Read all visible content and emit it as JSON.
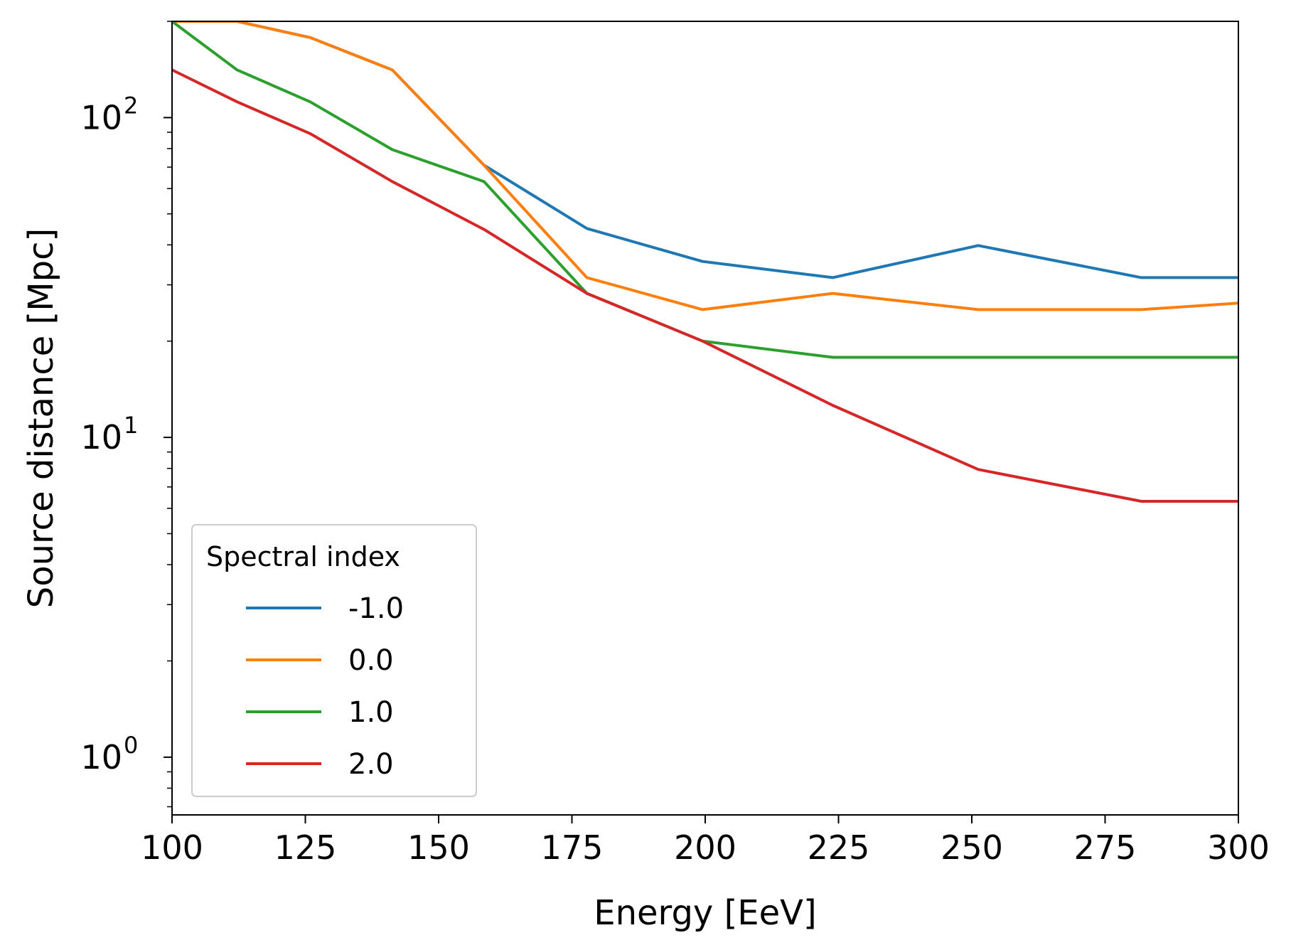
{
  "chart_data": {
    "type": "line",
    "xlabel": "Energy [EeV]",
    "ylabel": "Source distance [Mpc]",
    "xlim": [
      100,
      300
    ],
    "ylim": [
      0.66,
      200
    ],
    "yscale": "log",
    "x_ticks": [
      "100",
      "125",
      "150",
      "175",
      "200",
      "225",
      "250",
      "275",
      "300"
    ],
    "y_ticks": [
      {
        "base": "10",
        "exp": "0"
      },
      {
        "base": "10",
        "exp": "1"
      },
      {
        "base": "10",
        "exp": "2"
      }
    ],
    "legend": {
      "title": "Spectral index",
      "placement": "lower-left"
    },
    "grid": false,
    "x": [
      100,
      112.2,
      125.9,
      141.3,
      158.5,
      177.8,
      199.5,
      223.9,
      251.2,
      281.8,
      300
    ],
    "series": [
      {
        "name": "-1.0",
        "color": "#1f77b4",
        "values": [
          200,
          200,
          178,
          141,
          71,
          45,
          35.5,
          31.6,
          39.8,
          31.6,
          31.6
        ]
      },
      {
        "name": "0.0",
        "color": "#ff7f0e",
        "values": [
          200,
          200,
          178,
          141,
          71,
          31.6,
          25.1,
          28.2,
          25.1,
          25.1,
          26.3
        ]
      },
      {
        "name": "1.0",
        "color": "#2ca02c",
        "values": [
          200,
          141,
          112,
          79.4,
          63.1,
          28.2,
          20,
          17.8,
          17.8,
          17.8,
          17.8
        ]
      },
      {
        "name": "2.0",
        "color": "#d62728",
        "values": [
          141,
          112,
          89.1,
          63.1,
          44.7,
          28.2,
          20,
          12.6,
          7.94,
          6.31,
          6.31
        ]
      }
    ]
  }
}
